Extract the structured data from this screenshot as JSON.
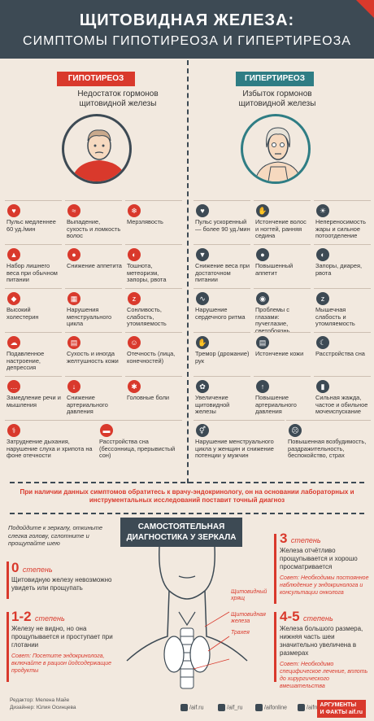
{
  "header": {
    "title": "ЩИТОВИДНАЯ ЖЕЛЕЗА:",
    "subtitle": "СИМПТОМЫ ГИПОТИРЕОЗА И ГИПЕРТИРЕОЗА"
  },
  "hypo": {
    "title": "ГИПОТИРЕОЗ",
    "subtitle": "Недостаток гормонов щитовидной железы",
    "symptoms": [
      "Пульс медленнее 60 уд./мин",
      "Выпадение, сухость и ломкость волос",
      "Мерзлявость",
      "Набор лишнего веса при обычном питании",
      "Снижение аппетита",
      "Тошнота, метеоризм, запоры, рвота",
      "Высокий холестерин",
      "Нарушения менструального цикла",
      "Сонливость, слабость, утомляемость",
      "Подавленное настроение, депрессия",
      "Сухость и иногда желтушность кожи",
      "Отечность (лица, конечностей)",
      "Замедление речи и мышления",
      "Снижение артериального давления",
      "Головные боли",
      "Затруднение дыхания, нарушение слуха и хрипота на фоне отечности",
      "Расстройства сна (бессонница, прерывистый сон)"
    ]
  },
  "hyper": {
    "title": "ГИПЕРТИРЕОЗ",
    "subtitle": "Избыток гормонов щитовидной железы",
    "symptoms": [
      "Пульс ускоренный — более 90 уд./мин",
      "Истончение волос и ногтей, ранняя седина",
      "Непереносимость жары и сильное потоотделение",
      "Снижение веса при достаточном питании",
      "Повышенный аппетит",
      "Запоры, диарея, рвота",
      "Нарушение сердечного ритма",
      "Проблемы с глазами: пучеглазие, светобоязнь",
      "Мышечная слабость и утомляемость",
      "Тремор (дрожание) рук",
      "Истончение кожи",
      "Расстройства сна",
      "Увеличение щитовидной железы",
      "Повышение артериального давления",
      "Сильная жажда, частое и обильное мочеиспускание",
      "Нарушение менструального цикла у женщин и снижение потенции у мужчин",
      "Повышенная возбудимость, раздражительность, беспокойство, страх"
    ]
  },
  "note": "При наличии данных симптомов обратитесь к врачу-эндокринологу, он на основании лабораторных и инструментальных исследований поставит точный диагноз",
  "self": {
    "title_line1": "САМОСТОЯТЕЛЬНАЯ",
    "title_line2": "ДИАГНОСТИКА У ЗЕРКАЛА",
    "hint": "Подойдите к зеркалу, откиньте слегка голову, сглотните и прощупайте шею"
  },
  "stages": {
    "s0": {
      "num": "0",
      "label": "степень",
      "body": "Щитовидную железу невозможно увидеть или прощупать"
    },
    "s12": {
      "num": "1-2",
      "label": "степень",
      "body": "Железу не видно, но она прощупывается и проступает при глотании",
      "advice": "Совет: Посетите эндокринолога, включайте в рацион йодсодержащие продукты"
    },
    "s3": {
      "num": "3",
      "label": "степень",
      "body": "Железа отчётливо прощупывается и хорошо просматривается",
      "advice": "Совет: Необходимы постоянное наблюдение у эндокринолога и консультации онколога"
    },
    "s45": {
      "num": "4-5",
      "label": "степень",
      "body": "Железа большого размера, нижняя часть шеи значительно увеличена в размерах",
      "advice": "Совет: Необходимо специфическое лечение, вплоть до хирургического вмешательства"
    }
  },
  "neck_labels": {
    "cartilage": "Щитовидный хрящ",
    "gland": "Щитовидная железа",
    "trachea": "Трахея"
  },
  "footer": {
    "editor": "Редактор: Мелена Майе",
    "designer": "Дизайнер: Юлия Осинцева",
    "social": [
      "/aif.ru",
      "/aif_ru",
      "/aifonline",
      "/aifru"
    ],
    "logo_line1": "АРГУМЕНТЫ",
    "logo_line2": "И ФАКТЫ aif.ru"
  },
  "colors": {
    "red": "#d9392c",
    "dark": "#3d4a54",
    "bg": "#f2e9df"
  }
}
